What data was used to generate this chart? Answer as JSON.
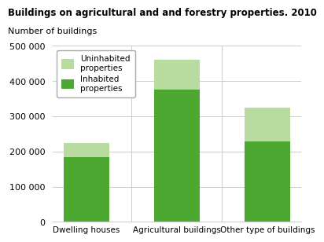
{
  "title": "Buildings on agricultural and and forestry properties. 2010",
  "ylabel": "Number of buildings",
  "categories": [
    "Dwelling houses",
    "Agricultural buildings",
    "Other type of buildings"
  ],
  "inhabited": [
    185000,
    375000,
    228000
  ],
  "uninhabited": [
    40000,
    85000,
    97000
  ],
  "color_inhabited": "#4da832",
  "color_uninhabited": "#b8dba0",
  "ylim": [
    0,
    500000
  ],
  "yticks": [
    0,
    100000,
    200000,
    300000,
    400000,
    500000
  ],
  "legend_uninhabited": "Uninhabited\nproperties",
  "legend_inhabited": "Inhabited\nproperties",
  "bar_width": 0.5
}
